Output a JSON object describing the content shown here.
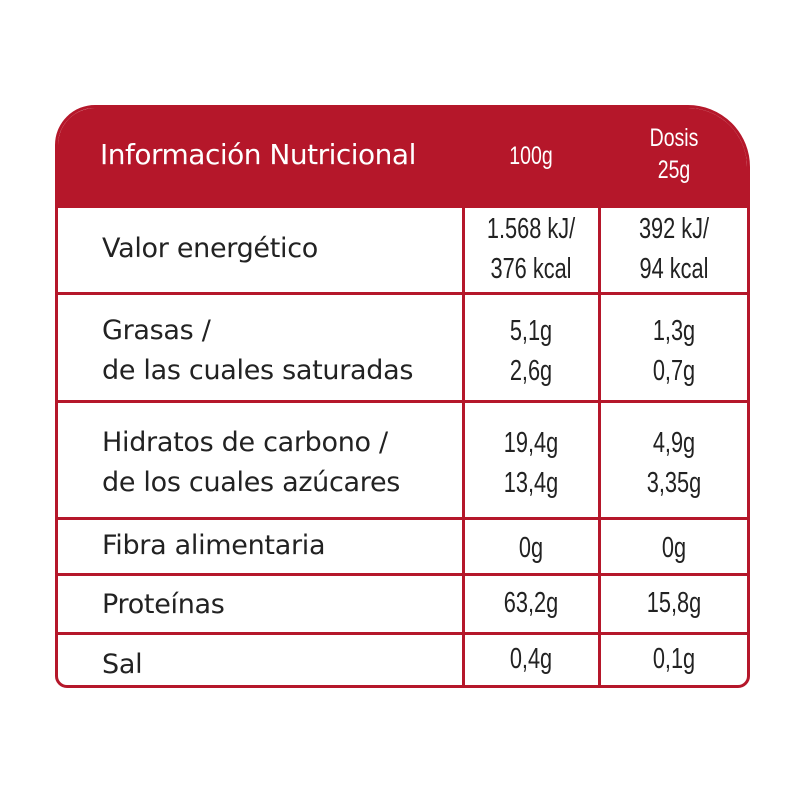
{
  "colors": {
    "accent": "#b5172a"
  },
  "header": {
    "title": "Información Nutricional",
    "col1": "100g",
    "col2_line1": "Dosis",
    "col2_line2": "25g"
  },
  "rows": [
    {
      "label": [
        "Valor energético"
      ],
      "v1": [
        "1.568 kJ/",
        "376 kcal"
      ],
      "v2": [
        "392 kJ/",
        "94 kcal"
      ]
    },
    {
      "label": [
        "Grasas /",
        "de las cuales saturadas"
      ],
      "v1": [
        "5,1g",
        "2,6g"
      ],
      "v2": [
        "1,3g",
        "0,7g"
      ]
    },
    {
      "label": [
        "Hidratos de carbono /",
        "de los cuales azúcares"
      ],
      "v1": [
        "19,4g",
        "13,4g"
      ],
      "v2": [
        "4,9g",
        "3,35g"
      ]
    },
    {
      "label": [
        "Fibra alimentaria"
      ],
      "v1": [
        "0g"
      ],
      "v2": [
        "0g"
      ]
    },
    {
      "label": [
        "Proteínas"
      ],
      "v1": [
        "63,2g"
      ],
      "v2": [
        "15,8g"
      ]
    },
    {
      "label": [
        "Sal"
      ],
      "v1": [
        "0,4g"
      ],
      "v2": [
        "0,1g"
      ]
    }
  ]
}
